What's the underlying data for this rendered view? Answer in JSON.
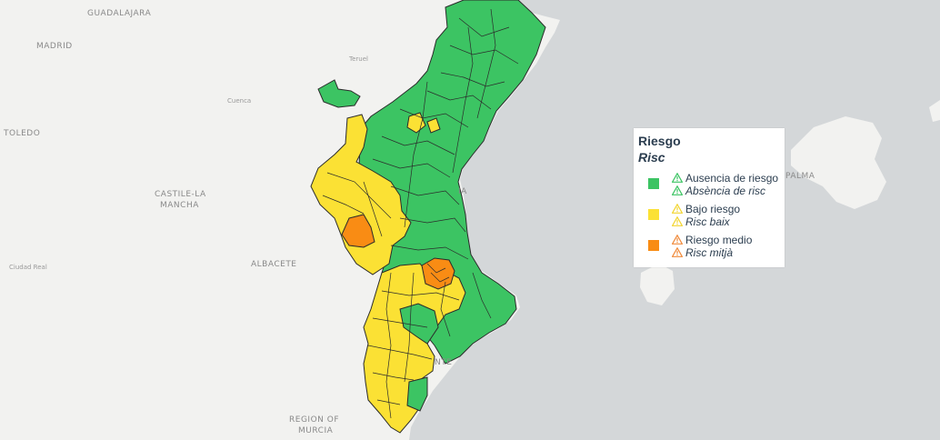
{
  "map": {
    "places": [
      {
        "name": "GUADALAJARA",
        "size": "big"
      },
      {
        "name": "MADRID",
        "size": "big"
      },
      {
        "name": "Teruel",
        "size": "small"
      },
      {
        "name": "Cuenca",
        "size": "small"
      },
      {
        "name": "TOLEDO",
        "size": "big"
      },
      {
        "name": "CASTILE-LA",
        "size": "big"
      },
      {
        "name": "MANCHA",
        "size": "big"
      },
      {
        "name": "Ciudad Real",
        "size": "small"
      },
      {
        "name": "ALBACETE",
        "size": "big"
      },
      {
        "name": "REGION OF",
        "size": "big"
      },
      {
        "name": "MURCIA",
        "size": "big"
      },
      {
        "name": "PALMA",
        "size": "big"
      },
      {
        "name": "IA",
        "size": "big"
      },
      {
        "name": "NTE",
        "size": "big"
      }
    ]
  },
  "legend": {
    "title": "Riesgo",
    "subtitle": "Risc",
    "entries": [
      {
        "label_es": "Ausencia de riesgo",
        "label_ca": "Absència de risc",
        "color": "#3cc463",
        "warn_color": "#3cc463"
      },
      {
        "label_es": "Bajo riesgo",
        "label_ca": "Risc baix",
        "color": "#fbe134",
        "warn_color": "#f2d531"
      },
      {
        "label_es": "Riesgo medio",
        "label_ca": "Risc mitjà",
        "color": "#f98c14",
        "warn_color": "#f08a3a"
      }
    ]
  },
  "colors": {
    "sea": "#d4d7d9",
    "land": "#f2f2f0",
    "border": "#2b2b2b"
  }
}
